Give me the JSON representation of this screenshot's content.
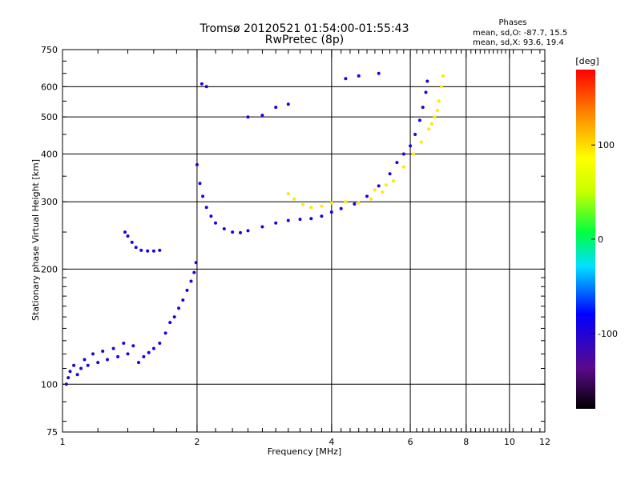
{
  "chart_data": {
    "type": "scatter",
    "title": "Tromsø 20120521 01:54:00-01:55:43",
    "subtitle": "RwPretec (8p)",
    "xlabel": "Frequency [MHz]",
    "ylabel": "Stationary phase Virtual Height [km]",
    "x_scale": "log",
    "y_scale": "log",
    "xlim": [
      1,
      12
    ],
    "ylim": [
      75,
      750
    ],
    "x_ticks": [
      1,
      2,
      4,
      6,
      8,
      10,
      12
    ],
    "x_tick_labels": [
      "1",
      "2",
      "4",
      "6",
      "8",
      "10",
      "12"
    ],
    "y_ticks": [
      75,
      100,
      200,
      300,
      400,
      500,
      600,
      750
    ],
    "y_tick_labels": [
      "75",
      "100",
      "200",
      "300",
      "400",
      "500",
      "600",
      "750"
    ],
    "grid": true,
    "phases_box": {
      "title": "Phases",
      "line1": "mean, sd,O: -87.7, 15.5",
      "line2": "mean, sd,X:  93.6, 19.4"
    },
    "colorbar": {
      "label": "[deg]",
      "range": [
        -180,
        180
      ],
      "ticks": [
        -100,
        0,
        100
      ],
      "tick_labels": [
        "-100",
        "0",
        "100"
      ],
      "colormap": "rainbow (black-purple-blue-cyan-green-yellow-orange-red)"
    },
    "series": [
      {
        "mode": "O",
        "phase_deg": -95,
        "points": [
          [
            1.02,
            100
          ],
          [
            1.03,
            104
          ],
          [
            1.04,
            108
          ],
          [
            1.06,
            112
          ],
          [
            1.08,
            106
          ],
          [
            1.1,
            110
          ],
          [
            1.12,
            116
          ],
          [
            1.14,
            112
          ],
          [
            1.17,
            120
          ],
          [
            1.2,
            114
          ],
          [
            1.23,
            122
          ],
          [
            1.26,
            116
          ],
          [
            1.3,
            124
          ],
          [
            1.33,
            118
          ],
          [
            1.37,
            128
          ],
          [
            1.4,
            120
          ],
          [
            1.44,
            126
          ],
          [
            1.48,
            114
          ],
          [
            1.52,
            118
          ],
          [
            1.56,
            121
          ],
          [
            1.6,
            124
          ],
          [
            1.65,
            128
          ],
          [
            1.7,
            136
          ],
          [
            1.74,
            145
          ],
          [
            1.78,
            150
          ],
          [
            1.82,
            158
          ],
          [
            1.86,
            166
          ],
          [
            1.9,
            176
          ],
          [
            1.94,
            186
          ],
          [
            1.97,
            196
          ],
          [
            1.99,
            208
          ],
          [
            1.38,
            250
          ],
          [
            1.4,
            244
          ],
          [
            1.43,
            235
          ],
          [
            1.46,
            228
          ],
          [
            1.5,
            224
          ],
          [
            1.55,
            223
          ],
          [
            1.6,
            223
          ],
          [
            1.65,
            224
          ],
          [
            2.0,
            375
          ],
          [
            2.03,
            335
          ],
          [
            2.06,
            310
          ],
          [
            2.1,
            290
          ],
          [
            2.15,
            275
          ],
          [
            2.2,
            264
          ],
          [
            2.3,
            255
          ],
          [
            2.4,
            250
          ],
          [
            2.5,
            249
          ],
          [
            2.6,
            252
          ],
          [
            2.8,
            258
          ],
          [
            3.0,
            264
          ],
          [
            3.2,
            268
          ],
          [
            3.4,
            270
          ],
          [
            3.6,
            271
          ],
          [
            3.8,
            275
          ],
          [
            4.0,
            282
          ],
          [
            4.2,
            288
          ],
          [
            4.5,
            296
          ],
          [
            4.8,
            310
          ],
          [
            5.1,
            330
          ],
          [
            5.4,
            355
          ],
          [
            5.6,
            380
          ],
          [
            5.8,
            400
          ],
          [
            6.0,
            420
          ],
          [
            6.15,
            450
          ],
          [
            6.3,
            490
          ],
          [
            6.4,
            530
          ],
          [
            6.5,
            580
          ],
          [
            6.55,
            620
          ],
          [
            2.05,
            610
          ],
          [
            2.1,
            600
          ],
          [
            2.6,
            500
          ],
          [
            2.8,
            505
          ],
          [
            3.0,
            530
          ],
          [
            3.2,
            540
          ],
          [
            4.3,
            630
          ],
          [
            4.6,
            640
          ],
          [
            5.1,
            650
          ]
        ]
      },
      {
        "mode": "X",
        "phase_deg": 95,
        "points": [
          [
            3.2,
            315
          ],
          [
            3.3,
            305
          ],
          [
            3.45,
            295
          ],
          [
            3.6,
            290
          ],
          [
            3.8,
            292
          ],
          [
            4.0,
            298
          ],
          [
            4.3,
            300
          ],
          [
            4.6,
            298
          ],
          [
            4.9,
            305
          ],
          [
            5.2,
            318
          ],
          [
            5.5,
            340
          ],
          [
            5.8,
            370
          ],
          [
            6.1,
            400
          ],
          [
            6.35,
            430
          ],
          [
            6.6,
            465
          ],
          [
            6.8,
            500
          ],
          [
            6.95,
            550
          ],
          [
            7.05,
            600
          ],
          [
            7.1,
            640
          ],
          [
            5.0,
            322
          ],
          [
            5.3,
            332
          ],
          [
            6.7,
            480
          ],
          [
            6.9,
            520
          ]
        ]
      }
    ]
  }
}
